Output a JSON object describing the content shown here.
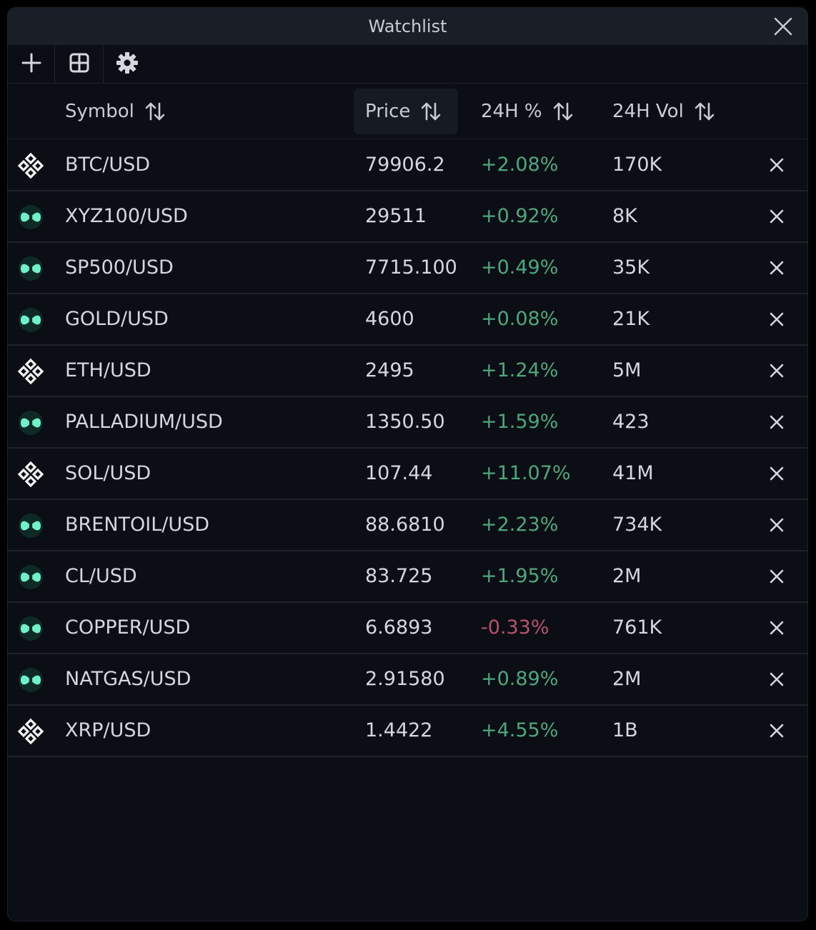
{
  "window": {
    "title": "Watchlist"
  },
  "toolbar": {
    "add_icon": "plus-icon",
    "layout_icon": "grid-icon",
    "settings_icon": "gear-icon"
  },
  "columns": {
    "symbol": "Symbol",
    "price": "Price",
    "change": "24H %",
    "volume": "24H Vol",
    "sort_icon": "sort-arrows-icon"
  },
  "colors": {
    "positive": "#4ca87c",
    "negative": "#b9536a",
    "accent": "#5ee8c0"
  },
  "rows": [
    {
      "icon": "diamond-icon",
      "symbol": "BTC/USD",
      "price": "79906.2",
      "change": "+2.08%",
      "volume": "170K"
    },
    {
      "icon": "infinity-icon",
      "symbol": "XYZ100/USD",
      "price": "29511",
      "change": "+0.92%",
      "volume": "8K"
    },
    {
      "icon": "infinity-icon",
      "symbol": "SP500/USD",
      "price": "7715.100",
      "change": "+0.49%",
      "volume": "35K"
    },
    {
      "icon": "infinity-icon",
      "symbol": "GOLD/USD",
      "price": "4600",
      "change": "+0.08%",
      "volume": "21K"
    },
    {
      "icon": "diamond-icon",
      "symbol": "ETH/USD",
      "price": "2495",
      "change": "+1.24%",
      "volume": "5M"
    },
    {
      "icon": "infinity-icon",
      "symbol": "PALLADIUM/USD",
      "price": "1350.50",
      "change": "+1.59%",
      "volume": "423"
    },
    {
      "icon": "diamond-icon",
      "symbol": "SOL/USD",
      "price": "107.44",
      "change": "+11.07%",
      "volume": "41M"
    },
    {
      "icon": "infinity-icon",
      "symbol": "BRENTOIL/USD",
      "price": "88.6810",
      "change": "+2.23%",
      "volume": "734K"
    },
    {
      "icon": "infinity-icon",
      "symbol": "CL/USD",
      "price": "83.725",
      "change": "+1.95%",
      "volume": "2M"
    },
    {
      "icon": "infinity-icon",
      "symbol": "COPPER/USD",
      "price": "6.6893",
      "change": "-0.33%",
      "volume": "761K"
    },
    {
      "icon": "infinity-icon",
      "symbol": "NATGAS/USD",
      "price": "2.91580",
      "change": "+0.89%",
      "volume": "2M"
    },
    {
      "icon": "diamond-icon",
      "symbol": "XRP/USD",
      "price": "1.4422",
      "change": "+4.55%",
      "volume": "1B"
    }
  ]
}
